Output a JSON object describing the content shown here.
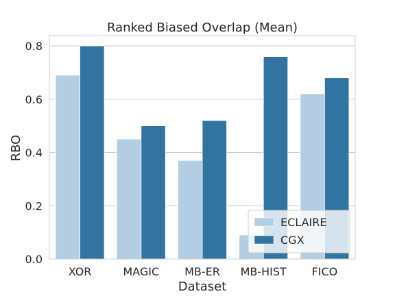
{
  "chart_data": {
    "type": "bar",
    "title": "Ranked Biased Overlap (Mean)",
    "xlabel": "Dataset",
    "ylabel": "RBO",
    "categories": [
      "XOR",
      "MAGIC",
      "MB-ER",
      "MB-HIST",
      "FICO"
    ],
    "series": [
      {
        "name": "ECLAIRE",
        "values": [
          0.69,
          0.45,
          0.37,
          0.09,
          0.62
        ],
        "color": "#b3cde3"
      },
      {
        "name": "CGX",
        "values": [
          0.8,
          0.5,
          0.52,
          0.76,
          0.68
        ],
        "color": "#3274a1"
      }
    ],
    "ylim": [
      0,
      0.8
    ],
    "yticks": [
      "0.0",
      "0.2",
      "0.4",
      "0.6",
      "0.8"
    ],
    "grid": "horizontal",
    "legend_position": "lower-right",
    "colors": {
      "grid": "#cccccc",
      "spine": "#cccccc",
      "legend_border": "#cccccc"
    }
  }
}
